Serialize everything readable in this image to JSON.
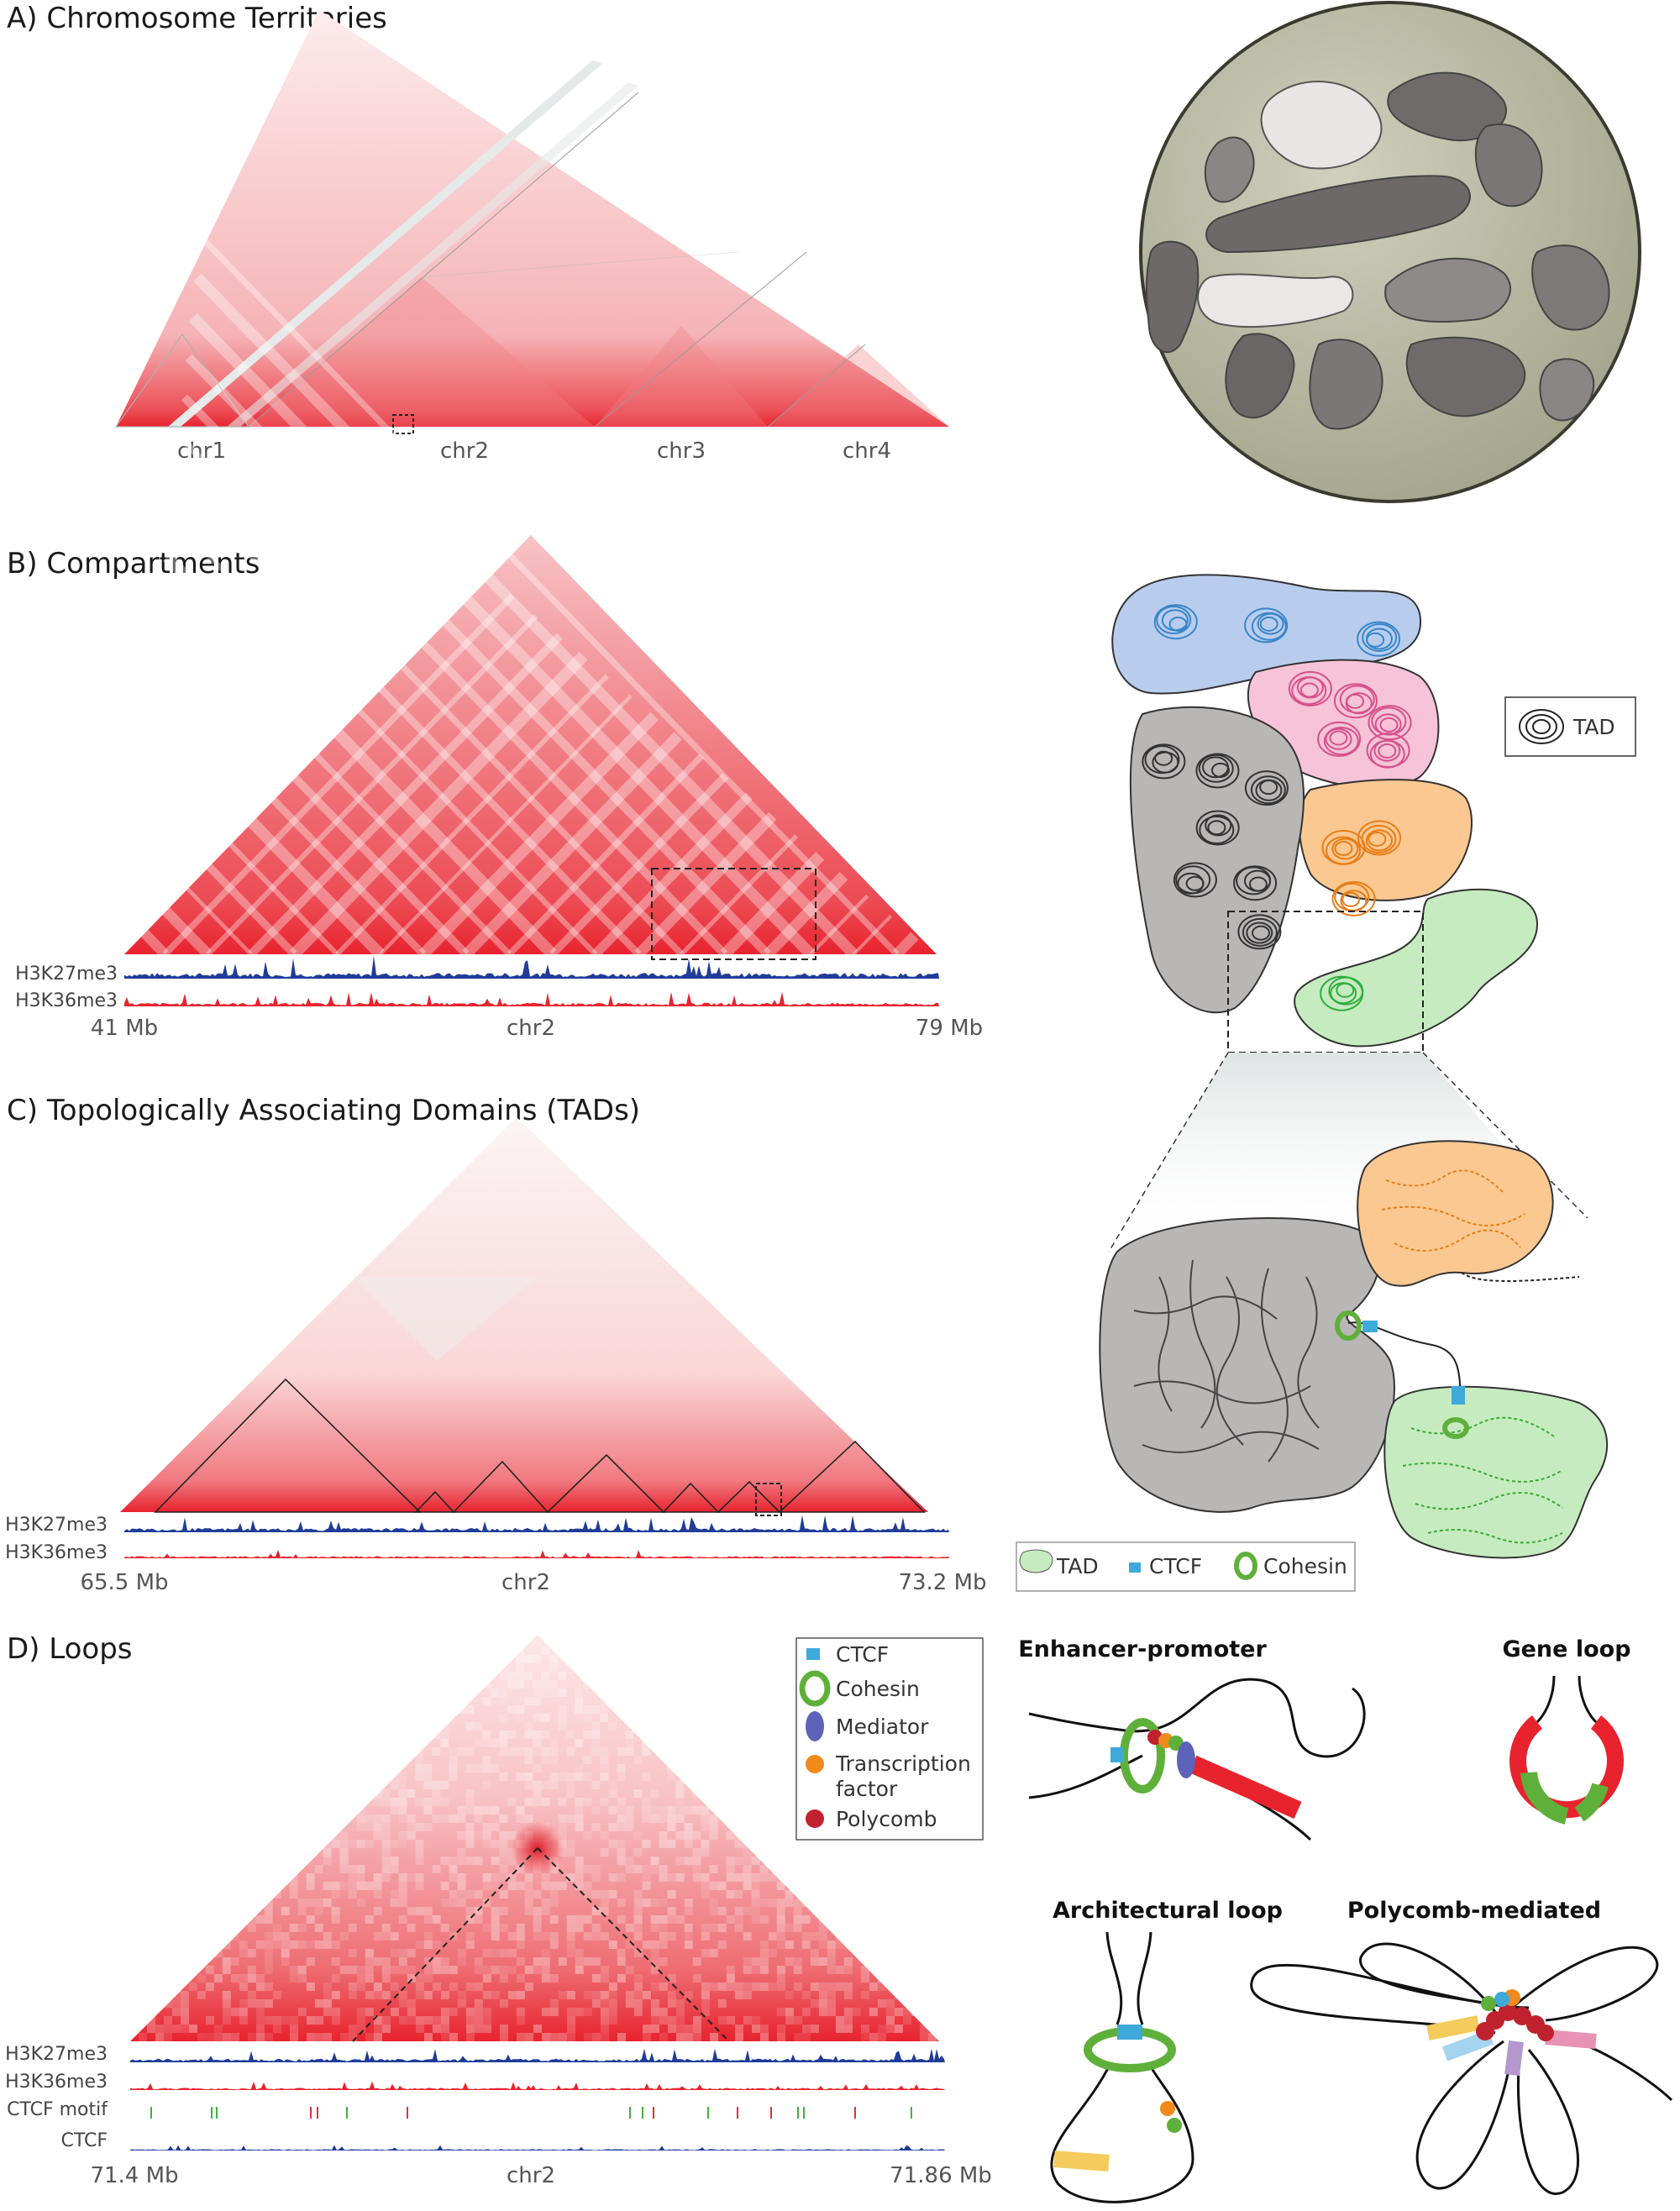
{
  "colors": {
    "heat": "#e8232e",
    "h3k27": "#1f3c99",
    "h3k36": "#e8232e",
    "ctcf_motif_green": "#3fb33f",
    "ctcf_motif_red": "#e0313a",
    "cohesin": "#5fb03a",
    "ctcf": "#3fa9d9",
    "mediator": "#5c63b8",
    "tf": "#f08a1c",
    "polycomb": "#c0212e",
    "tad_blue": "#b8cdee",
    "tad_pink": "#f6c3d8",
    "tad_orange": "#fbc892",
    "tad_green": "#c7ebc0",
    "tad_gray": "#b9b6b6"
  },
  "panel_a": {
    "title": "A) Chromosome Territories",
    "chromosomes": [
      "chr1",
      "chr2",
      "chr3",
      "chr4"
    ]
  },
  "panel_b": {
    "title": "B) Compartments",
    "tracks": [
      "H3K27me3",
      "H3K36me3"
    ],
    "start": "41 Mb",
    "chrom": "chr2",
    "end": "79 Mb",
    "legend_tad": "TAD"
  },
  "panel_c": {
    "title": "C) Topologically Associating Domains (TADs)",
    "tracks": [
      "H3K27me3",
      "H3K36me3"
    ],
    "start": "65.5 Mb",
    "chrom": "chr2",
    "end": "73.2 Mb",
    "legend": [
      "TAD",
      "CTCF",
      "Cohesin"
    ]
  },
  "panel_d": {
    "title": "D) Loops",
    "tracks": [
      "H3K27me3",
      "H3K36me3",
      "CTCF motif",
      "CTCF"
    ],
    "start": "71.4 Mb",
    "chrom": "chr2",
    "end": "71.86 Mb",
    "legend": [
      "CTCF",
      "Cohesin",
      "Mediator",
      "Transcription",
      "factor",
      "Polycomb"
    ],
    "loop_types": [
      "Enhancer-promoter",
      "Gene loop",
      "Architectural loop",
      "Polycomb-mediated"
    ]
  }
}
